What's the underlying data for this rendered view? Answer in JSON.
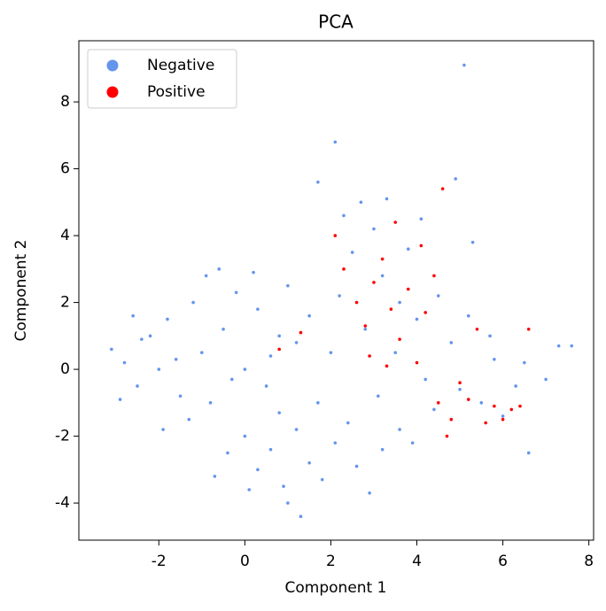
{
  "chart_data": {
    "type": "scatter",
    "title": "PCA",
    "x_label": "Component 1",
    "y_label": "Component 2",
    "xlim": [
      -3.86,
      8.11
    ],
    "ylim": [
      -5.11,
      9.83
    ],
    "xticks": [
      -2,
      0,
      2,
      4,
      6,
      8
    ],
    "yticks": [
      -4,
      -2,
      0,
      2,
      4,
      6,
      8
    ],
    "legend": "upper left",
    "series": [
      {
        "name": "Negative",
        "color": "#6495ed",
        "x": [
          -2.8,
          -2.5,
          -2.2,
          -2.0,
          -1.8,
          -1.5,
          -1.2,
          -1.0,
          -0.8,
          -0.5,
          -0.2,
          0,
          0.3,
          0.5,
          0.8,
          1.0,
          -1.6,
          -2.4,
          -0.3,
          0.6,
          -1.3,
          -3.1,
          -2.9,
          -0.9,
          0.2,
          1.2,
          -1.9,
          -2.6,
          -0.6,
          1.5,
          0.0,
          0.3,
          0.6,
          0.9,
          1.2,
          1.5,
          1.8,
          2.1,
          2.4,
          0.8,
          -0.4,
          -0.7,
          1.0,
          2.6,
          3.2,
          3.6,
          1.3,
          2.9,
          0.1,
          1.7,
          3.9,
          2.2,
          2.5,
          2.8,
          3.0,
          3.2,
          3.5,
          3.8,
          4.0,
          4.2,
          4.5,
          4.8,
          5.0,
          5.2,
          5.5,
          5.8,
          6.0,
          6.3,
          6.6,
          7.0,
          7.3,
          7.6,
          2.7,
          3.3,
          4.1,
          4.9,
          5.3,
          2.1,
          5.1,
          1.7,
          2.3,
          3.6,
          4.4,
          5.7,
          6.5,
          2.0,
          3.1
        ],
        "y": [
          0.2,
          -0.5,
          1.0,
          0.0,
          1.5,
          -0.8,
          2.0,
          0.5,
          -1.0,
          1.2,
          2.3,
          0,
          1.8,
          -0.5,
          1.0,
          2.5,
          0.3,
          0.9,
          -0.3,
          0.4,
          -1.5,
          0.6,
          -0.9,
          2.8,
          2.9,
          0.8,
          -1.8,
          1.6,
          3.0,
          1.6,
          -2.0,
          -3.0,
          -2.4,
          -3.5,
          -1.8,
          -2.8,
          -3.3,
          -2.2,
          -1.6,
          -1.3,
          -2.5,
          -3.2,
          -4.0,
          -2.9,
          -2.4,
          -1.8,
          -4.4,
          -3.7,
          -3.6,
          -1.0,
          -2.2,
          2.2,
          3.5,
          1.2,
          4.2,
          2.8,
          0.5,
          3.6,
          1.5,
          -0.3,
          2.2,
          0.8,
          -0.6,
          1.6,
          -1.0,
          0.3,
          -1.4,
          -0.5,
          -2.5,
          -0.3,
          0.7,
          0.7,
          5.0,
          5.1,
          4.5,
          5.7,
          3.8,
          6.8,
          9.1,
          5.6,
          4.6,
          2.0,
          -1.2,
          1.0,
          0.2,
          0.5,
          -0.8
        ]
      },
      {
        "name": "Positive",
        "color": "#ff0000",
        "x": [
          2.1,
          2.3,
          2.6,
          2.8,
          3.0,
          3.2,
          3.4,
          3.6,
          3.8,
          4.0,
          4.2,
          4.4,
          4.5,
          4.6,
          4.8,
          5.0,
          5.2,
          5.4,
          5.6,
          5.8,
          6.0,
          6.2,
          6.6,
          6.4,
          3.3,
          2.9,
          4.1,
          4.7,
          0.8,
          1.3,
          3.5
        ],
        "y": [
          4.0,
          3.0,
          2.0,
          1.3,
          2.6,
          3.3,
          1.8,
          0.9,
          2.4,
          0.2,
          1.7,
          2.8,
          -1.0,
          5.4,
          -1.5,
          -0.4,
          -0.9,
          1.2,
          -1.6,
          -1.1,
          -1.5,
          -1.2,
          1.2,
          -1.1,
          0.1,
          0.4,
          3.7,
          -2.0,
          0.6,
          1.1,
          4.4
        ]
      }
    ]
  }
}
